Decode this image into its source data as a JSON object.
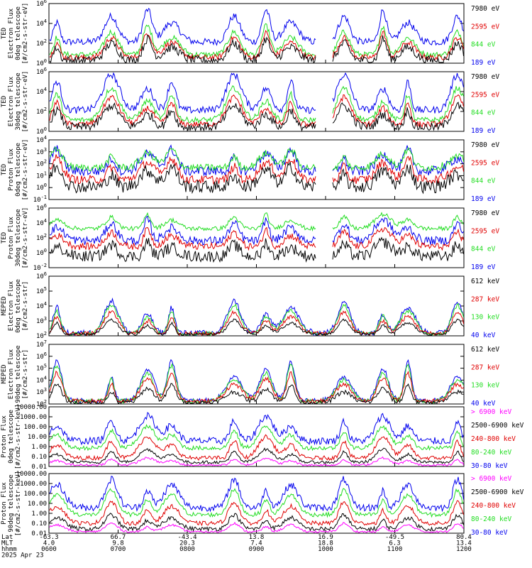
{
  "colors": {
    "black": "#000000",
    "red": "#e00000",
    "green": "#22dd22",
    "blue": "#0000ee",
    "magenta": "#ff00ff"
  },
  "panels": [
    {
      "id": "ted-e-0",
      "ylabel": [
        "TED",
        "Electron Flux",
        "0deg telescope",
        "[#/cm2-s-str-eV]"
      ],
      "yticks": [
        "10^6",
        "10^4",
        "10^2",
        "10^0"
      ],
      "ytick_style": "pow",
      "energies": [
        {
          "label": "7980 eV",
          "color": "black"
        },
        {
          "label": "2595 eV",
          "color": "red"
        },
        {
          "label": "844 eV",
          "color": "green"
        },
        {
          "label": "189 eV",
          "color": "blue"
        }
      ]
    },
    {
      "id": "ted-e-30",
      "ylabel": [
        "TED",
        "Electron Flux",
        "30deg telescope",
        "[#/cm2-s-str-eV]"
      ],
      "yticks": [
        "10^6",
        "10^4",
        "10^2",
        "10^0"
      ],
      "ytick_style": "pow",
      "energies": [
        {
          "label": "7980 eV",
          "color": "black"
        },
        {
          "label": "2595 eV",
          "color": "red"
        },
        {
          "label": "844 eV",
          "color": "green"
        },
        {
          "label": "189 eV",
          "color": "blue"
        }
      ]
    },
    {
      "id": "ted-p-0",
      "ylabel": [
        "TED",
        "Proton Flux",
        "0deg telescope",
        "[#/cm2-s-str-eV]"
      ],
      "yticks": [
        "10^4",
        "10^3",
        "10^2",
        "10^1",
        "10^0",
        "10^-1"
      ],
      "ytick_style": "pow",
      "energies": [
        {
          "label": "7980 eV",
          "color": "black"
        },
        {
          "label": "2595 eV",
          "color": "red"
        },
        {
          "label": "844 eV",
          "color": "green"
        },
        {
          "label": "189 eV",
          "color": "blue"
        }
      ]
    },
    {
      "id": "ted-p-30",
      "ylabel": [
        "TED",
        "Proton Flux",
        "30deg telescope",
        "[#/cm2-s-str-eV]"
      ],
      "yticks": [
        "10^6",
        "10^4",
        "10^2",
        "10^0",
        "10^-2"
      ],
      "ytick_style": "pow",
      "energies": [
        {
          "label": "7980 eV",
          "color": "black"
        },
        {
          "label": "2595 eV",
          "color": "red"
        },
        {
          "label": "844 eV",
          "color": "green"
        },
        {
          "label": "189 eV",
          "color": "blue"
        }
      ]
    },
    {
      "id": "meped-e-0",
      "ylabel": [
        "MEPED",
        "Electron Flux",
        "0deg telescope",
        "[#/cm2-s-str]"
      ],
      "yticks": [
        "10^6",
        "10^5",
        "10^4",
        "10^3",
        "10^2"
      ],
      "ytick_style": "pow",
      "energies": [
        {
          "label": "612 keV",
          "color": "black"
        },
        {
          "label": "287 keV",
          "color": "red"
        },
        {
          "label": "130 keV",
          "color": "green"
        },
        {
          "label": "40 keV",
          "color": "blue"
        }
      ]
    },
    {
      "id": "meped-e-90",
      "ylabel": [
        "MEPED",
        "Electron Flux",
        "90deg telescope",
        "[#/cm2-s-str]"
      ],
      "yticks": [
        "10^7",
        "10^6",
        "10^5",
        "10^4",
        "10^3",
        "10^2"
      ],
      "ytick_style": "pow",
      "energies": [
        {
          "label": "612 keV",
          "color": "black"
        },
        {
          "label": "287 keV",
          "color": "red"
        },
        {
          "label": "130 keV",
          "color": "green"
        },
        {
          "label": "40 keV",
          "color": "blue"
        }
      ]
    },
    {
      "id": "meped-p-0",
      "ylabel": [
        "Proton Flux",
        "0deg telescope",
        "[#/cm2-s-str-keV]"
      ],
      "yticks": [
        "10000.00",
        "1000.00",
        "100.00",
        "10.00",
        "1.00",
        "0.10",
        "0.01"
      ],
      "ytick_style": "plain",
      "energies": [
        {
          "label": "> 6900 keV",
          "color": "magenta"
        },
        {
          "label": "2500-6900 keV",
          "color": "black"
        },
        {
          "label": "240-800 keV",
          "color": "red"
        },
        {
          "label": "80-240 keV",
          "color": "green"
        },
        {
          "label": "30-80 keV",
          "color": "blue"
        }
      ]
    },
    {
      "id": "meped-p-90",
      "ylabel": [
        "Proton Flux",
        "90deg telescope",
        "[#/cm2-s-str-keV]"
      ],
      "yticks": [
        "10000.00",
        "1000.00",
        "100.00",
        "10.00",
        "1.00",
        "0.10",
        "0.01"
      ],
      "ytick_style": "plain",
      "energies": [
        {
          "label": "> 6900 keV",
          "color": "magenta"
        },
        {
          "label": "2500-6900 keV",
          "color": "black"
        },
        {
          "label": "240-800 keV",
          "color": "red"
        },
        {
          "label": "80-240 keV",
          "color": "green"
        },
        {
          "label": "30-80 keV",
          "color": "blue"
        }
      ]
    }
  ],
  "footer": {
    "row_labels": [
      "Lat",
      "MLT",
      "hhmm",
      "2025 Apr 23"
    ],
    "columns": [
      {
        "lat": "-63.3",
        "mlt": "4.0",
        "hhmm": "0600"
      },
      {
        "lat": "66.7",
        "mlt": "9.8",
        "hhmm": "0700"
      },
      {
        "lat": "-43.4",
        "mlt": "20.3",
        "hhmm": "0800"
      },
      {
        "lat": "13.8",
        "mlt": "7.4",
        "hhmm": "0900"
      },
      {
        "lat": "16.9",
        "mlt": "18.8",
        "hhmm": "1000"
      },
      {
        "lat": "-49.5",
        "mlt": "6.3",
        "hhmm": "1100"
      },
      {
        "lat": "80.4",
        "mlt": "13.4",
        "hhmm": "1200"
      }
    ]
  },
  "chart_data": {
    "type": "line",
    "x": [
      "0600",
      "0700",
      "0800",
      "0900",
      "1000",
      "1100",
      "1200"
    ],
    "xlabel": "hhmm",
    "panels": [
      "TED Electron Flux 0deg telescope",
      "TED Electron Flux 30deg telescope",
      "TED Proton Flux 0deg telescope",
      "TED Proton Flux 30deg telescope",
      "MEPED Electron Flux 0deg telescope",
      "MEPED Electron Flux 90deg telescope",
      "Proton Flux 0deg telescope",
      "Proton Flux 90deg telescope"
    ],
    "date": "2025 Apr 23",
    "grid": false
  }
}
